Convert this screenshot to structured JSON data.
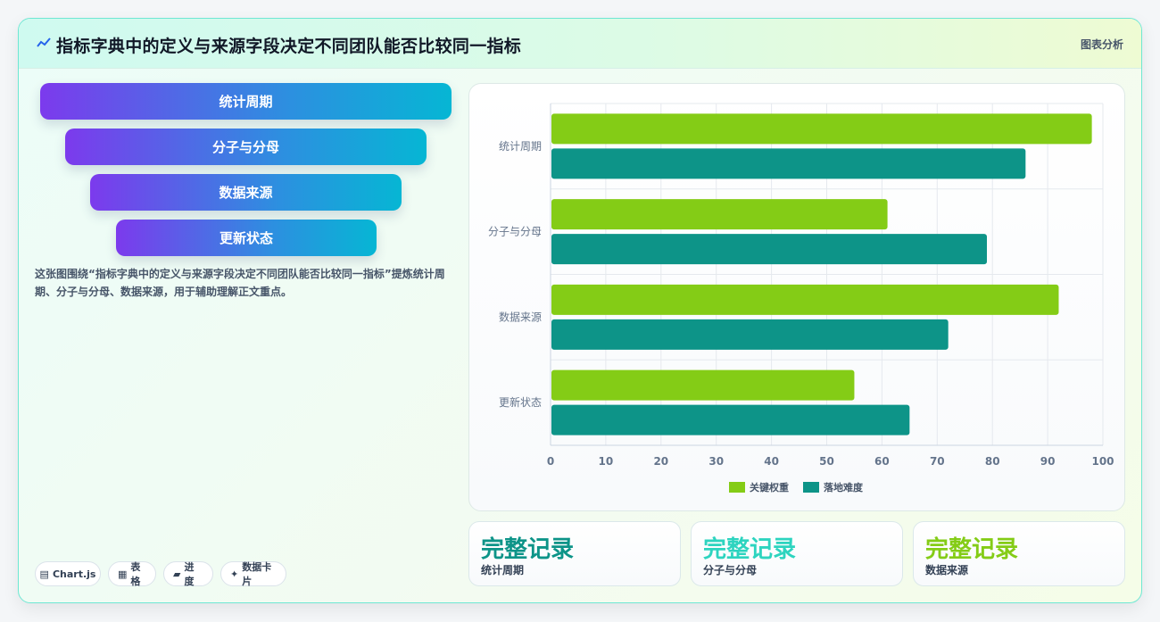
{
  "header": {
    "title": "指标字典中的定义与来源字段决定不同团队能否比较同一指标",
    "tag": "图表分析"
  },
  "funnel": [
    "统计周期",
    "分子与分母",
    "数据来源",
    "更新状态"
  ],
  "description": "这张图围绕“指标字典中的定义与来源字段决定不同团队能否比较同一指标”提炼统计周期、分子与分母、数据来源，用于辅助理解正文重点。",
  "pills": [
    {
      "icon": "chart-icon",
      "glyph": "▤",
      "label": "Chart.js"
    },
    {
      "icon": "table-icon",
      "glyph": "▦",
      "label": "表格"
    },
    {
      "icon": "progress-icon",
      "glyph": "▰",
      "label": "进度"
    },
    {
      "icon": "sparkle-icon",
      "glyph": "✦",
      "label": "数据卡片"
    }
  ],
  "stats": [
    {
      "value": "完整记录",
      "label": "统计周期",
      "color": "#0d9488"
    },
    {
      "value": "完整记录",
      "label": "分子与分母",
      "color": "#2dd4bf"
    },
    {
      "value": "完整记录",
      "label": "数据来源",
      "color": "#84cc16"
    }
  ],
  "chart_data": {
    "type": "bar",
    "orientation": "horizontal",
    "categories": [
      "统计周期",
      "分子与分母",
      "数据来源",
      "更新状态"
    ],
    "series": [
      {
        "name": "关键权重",
        "values": [
          98,
          61,
          92,
          55
        ],
        "color": "#84cc16"
      },
      {
        "name": "落地难度",
        "values": [
          86,
          79,
          72,
          65
        ],
        "color": "#0d9488"
      }
    ],
    "xlim": [
      0,
      100
    ],
    "xticks": [
      0,
      10,
      20,
      30,
      40,
      50,
      60,
      70,
      80,
      90,
      100
    ],
    "grid": true,
    "legend_position": "bottom"
  }
}
